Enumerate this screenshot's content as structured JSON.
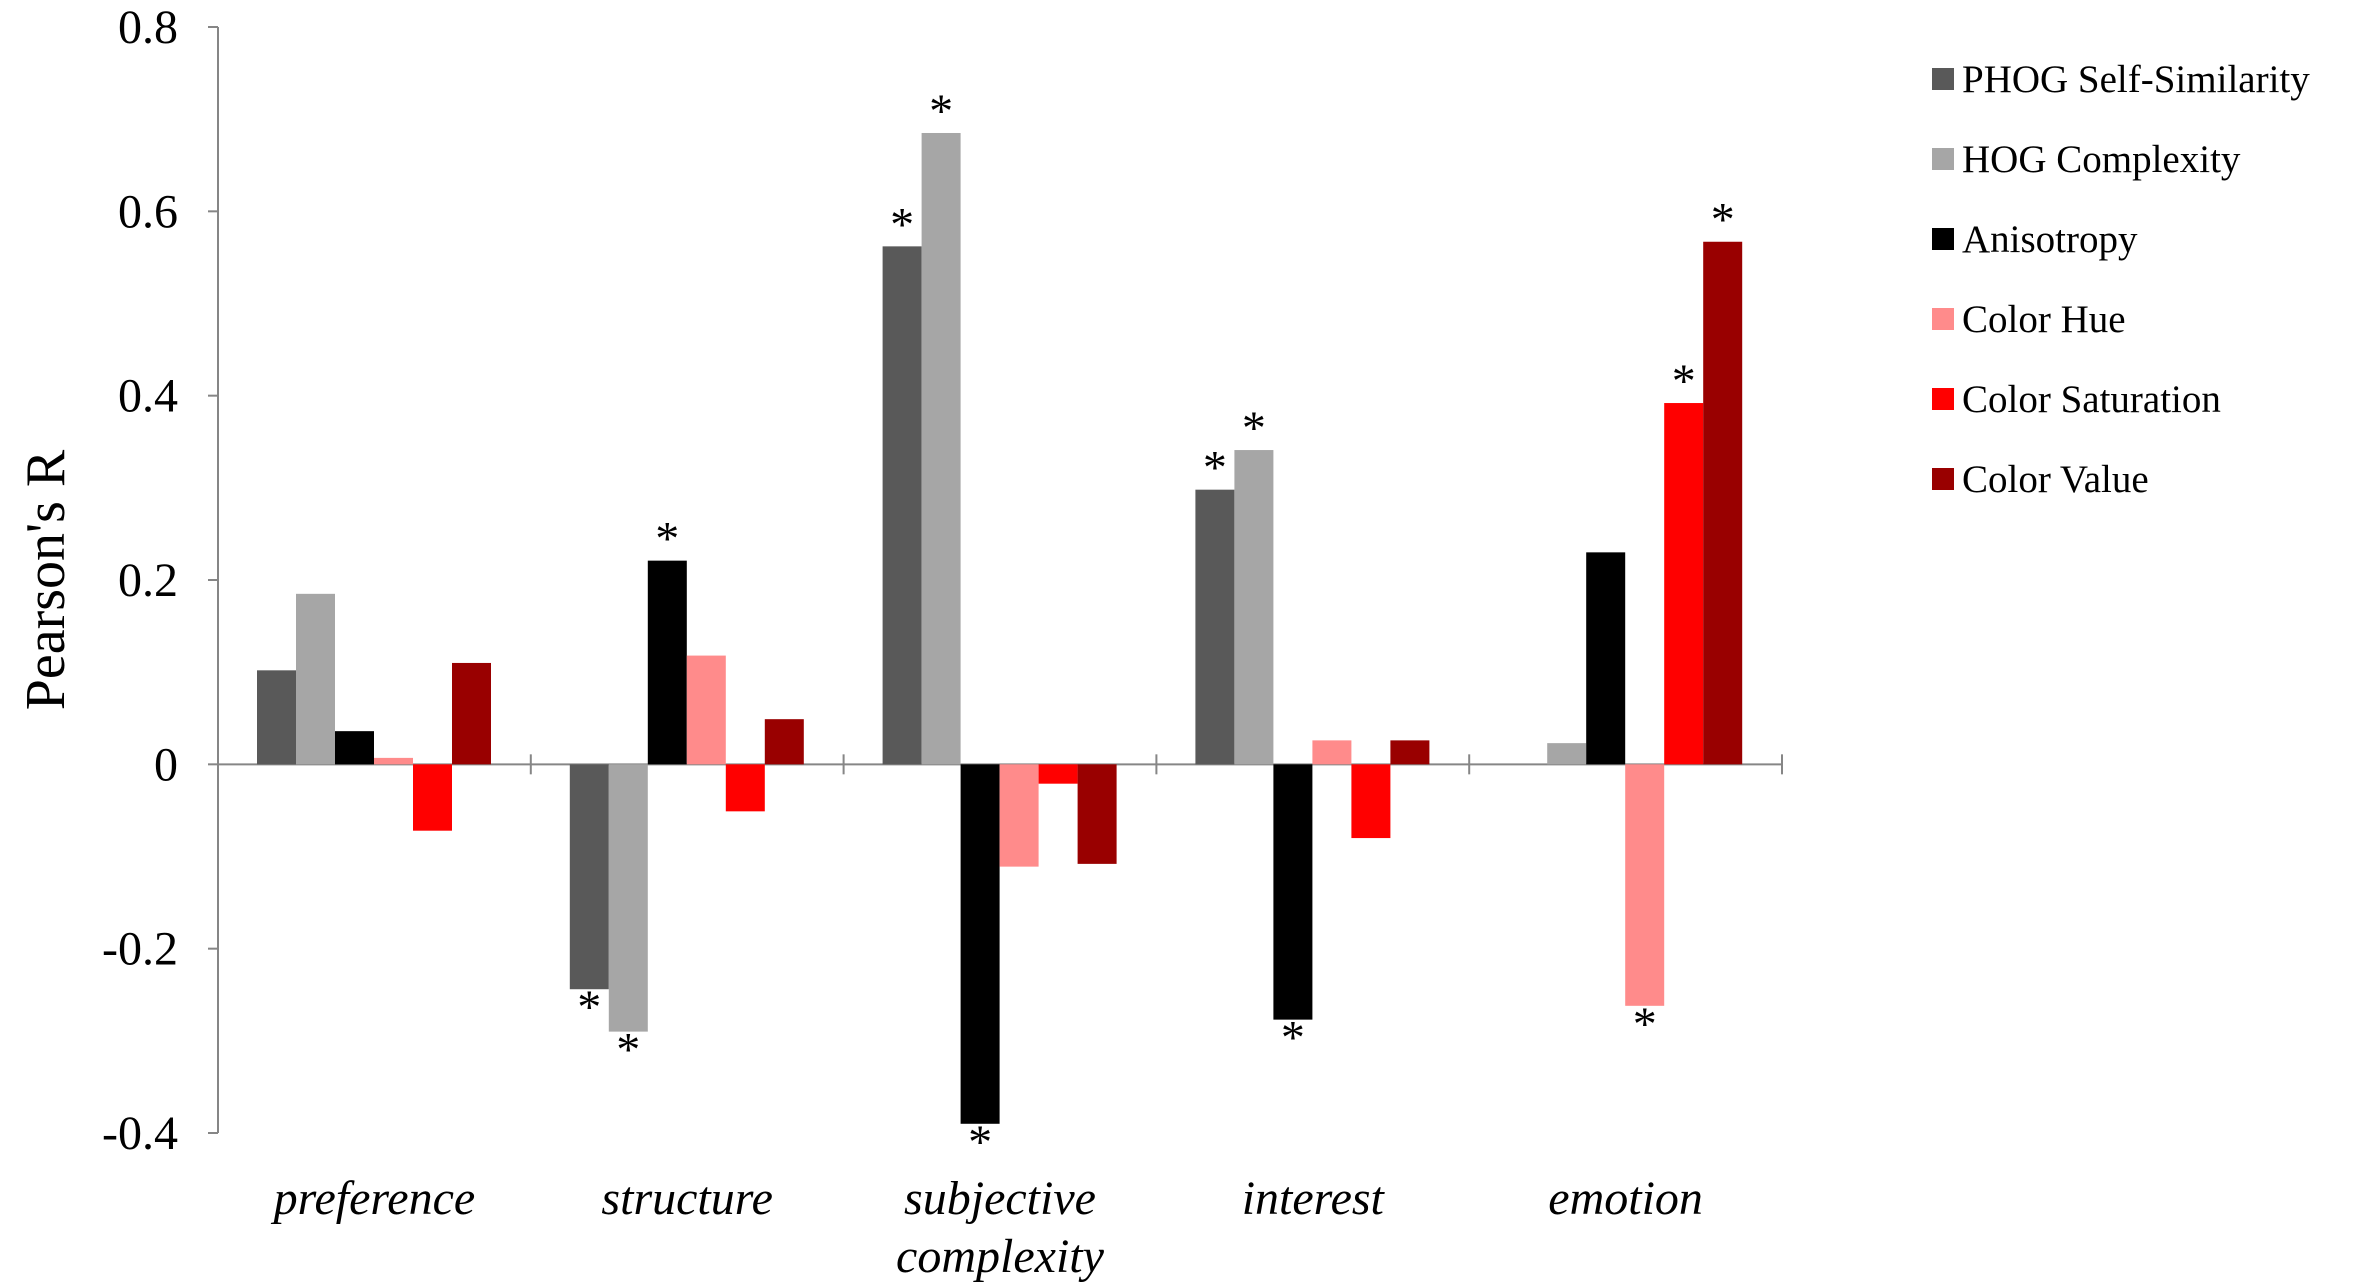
{
  "chart_data": {
    "type": "bar",
    "title": "",
    "xlabel": "",
    "ylabel": "Pearson's R",
    "ylim": [
      -0.4,
      0.8
    ],
    "yticks": [
      "0.8",
      "0.6",
      "0.4",
      "0.2",
      "0",
      "-0.2",
      "-0.4"
    ],
    "ytick_values": [
      0.8,
      0.6,
      0.4,
      0.2,
      0,
      -0.2,
      -0.4
    ],
    "categories": [
      "preference",
      "structure",
      "subjective complexity",
      "interest",
      "emotion"
    ],
    "category_lines": [
      [
        "preference"
      ],
      [
        "structure"
      ],
      [
        "subjective",
        "complexity"
      ],
      [
        "interest"
      ],
      [
        "emotion"
      ]
    ],
    "grid": false,
    "legend_position": "right",
    "significance_marker": "*",
    "series": [
      {
        "name": "PHOG Self-Similarity",
        "color": "#595959",
        "values": [
          0.102,
          -0.244,
          0.562,
          0.298,
          0.0
        ],
        "significant": [
          false,
          true,
          true,
          true,
          false
        ]
      },
      {
        "name": "HOG Complexity",
        "color": "#a6a6a6",
        "values": [
          0.185,
          -0.29,
          0.685,
          0.341,
          0.023
        ],
        "significant": [
          false,
          true,
          true,
          true,
          false
        ]
      },
      {
        "name": "Anisotropy",
        "color": "#000000",
        "values": [
          0.036,
          0.221,
          -0.39,
          -0.277,
          0.23
        ],
        "significant": [
          false,
          true,
          true,
          true,
          false
        ]
      },
      {
        "name": "Color Hue",
        "color": "#ff8b8b",
        "values": [
          0.007,
          0.118,
          -0.111,
          0.026,
          -0.262
        ],
        "significant": [
          false,
          false,
          false,
          false,
          true
        ]
      },
      {
        "name": "Color Saturation",
        "color": "#ff0000",
        "values": [
          -0.072,
          -0.051,
          -0.021,
          -0.08,
          0.392
        ],
        "significant": [
          false,
          false,
          false,
          false,
          true
        ]
      },
      {
        "name": "Color Value",
        "color": "#990000",
        "values": [
          0.11,
          0.049,
          -0.108,
          0.026,
          0.567
        ],
        "significant": [
          false,
          false,
          false,
          false,
          true
        ]
      }
    ]
  }
}
